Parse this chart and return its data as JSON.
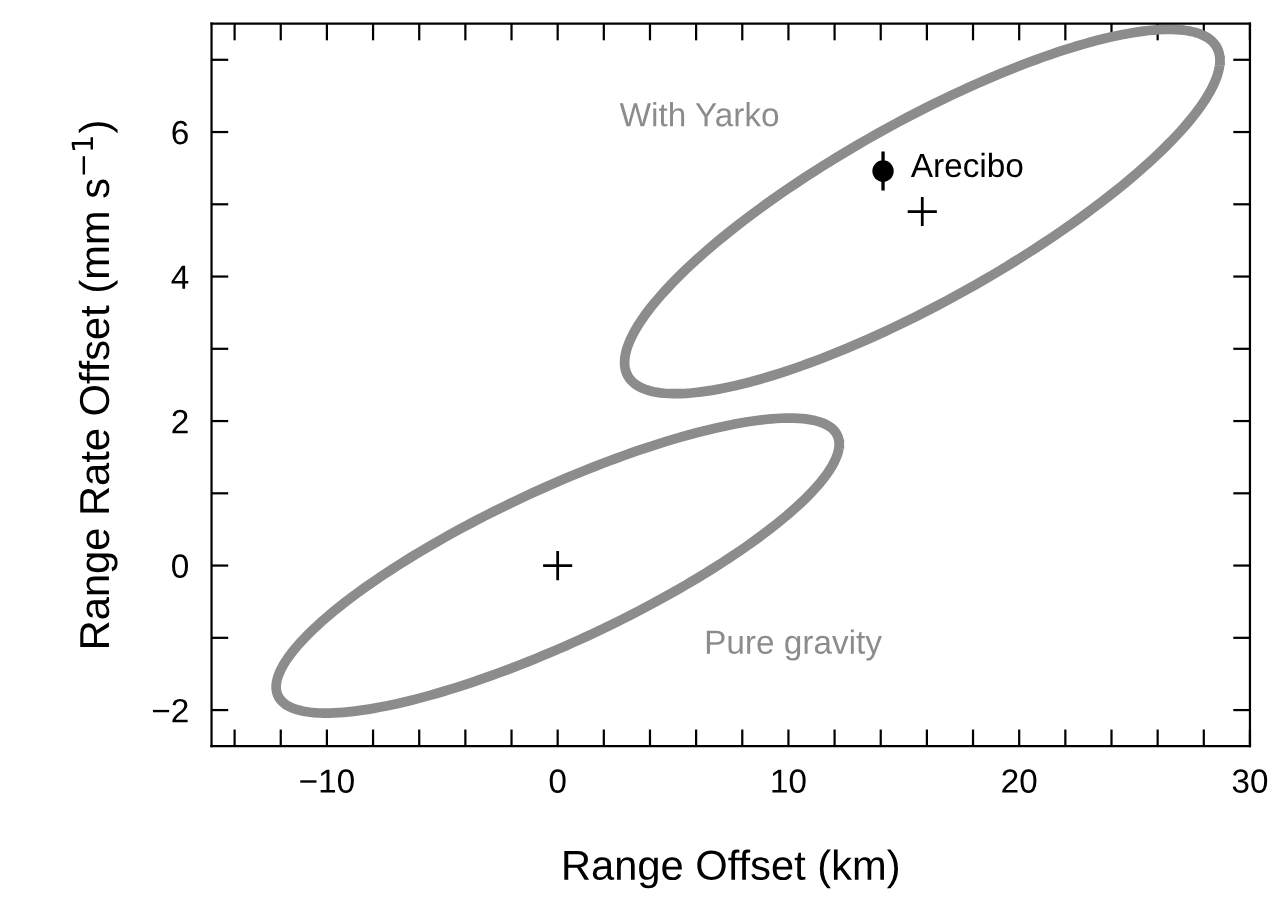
{
  "chart_data": {
    "type": "scatter",
    "xlabel": "Range Offset (km)",
    "ylabel": "Range Rate Offset (mm s$^{−1}$)",
    "xlim": [
      -15,
      30
    ],
    "ylim": [
      -2.5,
      7.5
    ],
    "xticks": [
      {
        "value": -14,
        "label": null
      },
      {
        "value": -12,
        "label": null
      },
      {
        "value": -10,
        "label": "−10"
      },
      {
        "value": -8,
        "label": null
      },
      {
        "value": -6,
        "label": null
      },
      {
        "value": -4,
        "label": null
      },
      {
        "value": -2,
        "label": null
      },
      0,
      {
        "value": 2,
        "label": null
      },
      {
        "value": 4,
        "label": null
      },
      {
        "value": 6,
        "label": null
      },
      {
        "value": 8,
        "label": null
      },
      10,
      {
        "value": 12,
        "label": null
      },
      {
        "value": 14,
        "label": null
      },
      {
        "value": 16,
        "label": null
      },
      {
        "value": 18,
        "label": null
      },
      20,
      {
        "value": 22,
        "label": null
      },
      {
        "value": 24,
        "label": null
      },
      {
        "value": 26,
        "label": null
      },
      {
        "value": 28,
        "label": null
      },
      30
    ],
    "yticks": [
      {
        "value": -2,
        "label": "−2"
      },
      {
        "value": -1,
        "label": null
      },
      0,
      {
        "value": 1,
        "label": null
      },
      2,
      {
        "value": 3,
        "label": null
      },
      4,
      {
        "value": 5,
        "label": null
      },
      6,
      {
        "value": 7,
        "label": null
      }
    ],
    "grid": false,
    "legend": false,
    "series": [
      {
        "color": "#000000",
        "marker": "cross",
        "x": [
          0,
          15.8
        ],
        "values": [
          0,
          4.9
        ]
      },
      {
        "color": "#000000",
        "marker": "circle",
        "x": [
          14.1
        ],
        "values": [
          5.46
        ],
        "errors": [
          0.27
        ]
      }
    ],
    "annotations": [
      "With Yarko",
      "Pure gravity",
      {
        "text": "Arecibo",
        "x": 14.1,
        "y": 5.46
      }
    ]
  }
}
